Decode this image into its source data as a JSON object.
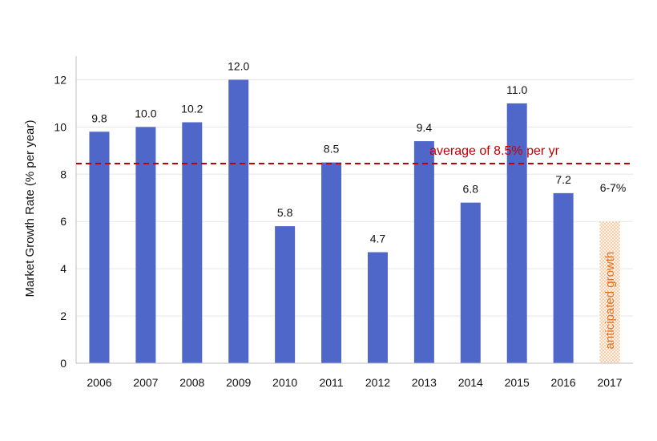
{
  "chart_data": {
    "type": "bar",
    "categories": [
      "2006",
      "2007",
      "2008",
      "2009",
      "2010",
      "2011",
      "2012",
      "2013",
      "2014",
      "2015",
      "2016",
      "2017"
    ],
    "values": [
      9.8,
      10.0,
      10.2,
      12.0,
      5.8,
      8.5,
      4.7,
      9.4,
      6.8,
      11.0,
      7.2,
      null
    ],
    "data_labels": [
      "9.8",
      "10.0",
      "10.2",
      "12.0",
      "5.8",
      "8.5",
      "4.7",
      "9.4",
      "6.8",
      "11.0",
      "7.2",
      "6-7%"
    ],
    "ylabel": "Market Growth Rate (% per year)",
    "xlabel": "",
    "ylim": [
      0,
      13
    ],
    "yticks": [
      0,
      2,
      4,
      6,
      8,
      10,
      12
    ],
    "grid": true,
    "bar_color": "#4f67c9",
    "reference_line": {
      "value": 8.45,
      "label": "average of 8.5% per yr",
      "color": "#c00000",
      "style": "dashed"
    },
    "anticipated": {
      "category": "2017",
      "range": [
        0,
        6
      ],
      "label": "anticipated growth",
      "color": "#e07020"
    }
  }
}
